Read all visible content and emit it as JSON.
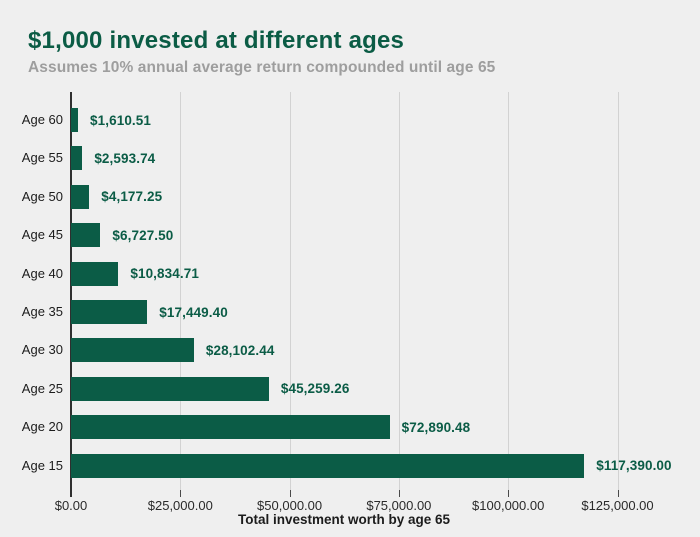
{
  "header": {
    "title": "$1,000 invested at different ages",
    "subtitle": "Assumes 10% annual average return compounded until age 65"
  },
  "chart_data": {
    "type": "bar",
    "orientation": "horizontal",
    "title": "$1,000 invested at different ages",
    "subtitle": "Assumes 10% annual average return compounded until age 65",
    "xlabel": "Total investment worth by age 65",
    "ylabel": "",
    "categories": [
      "Age 60",
      "Age 55",
      "Age 50",
      "Age 45",
      "Age 40",
      "Age 35",
      "Age 30",
      "Age 25",
      "Age 20",
      "Age 15"
    ],
    "values": [
      1610.51,
      2593.74,
      4177.25,
      6727.5,
      10834.71,
      17449.4,
      28102.44,
      45259.26,
      72890.48,
      117390.0
    ],
    "value_labels": [
      "$1,610.51",
      "$2,593.74",
      "$4,177.25",
      "$6,727.50",
      "$10,834.71",
      "$17,449.40",
      "$28,102.44",
      "$45,259.26",
      "$72,890.48",
      "$117,390.00"
    ],
    "x_ticks": [
      0,
      25000,
      50000,
      75000,
      100000,
      125000
    ],
    "x_tick_labels": [
      "$0.00",
      "$25,000.00",
      "$50,000.00",
      "$75,000.00",
      "$100,000.00",
      "$125,000.00"
    ],
    "xlim": [
      0,
      139000
    ],
    "grid": "vertical",
    "legend": "none",
    "colors": {
      "bar": "#0b5c46",
      "value_label": "#0b5c46",
      "title": "#0b5c45",
      "subtitle": "#9e9e9e",
      "category_label": "#1c1c1c",
      "tick_label": "#2a2a2a",
      "gridline": "#d2d2d2",
      "axis": "#2f2f2f",
      "background": "#efefef"
    }
  }
}
